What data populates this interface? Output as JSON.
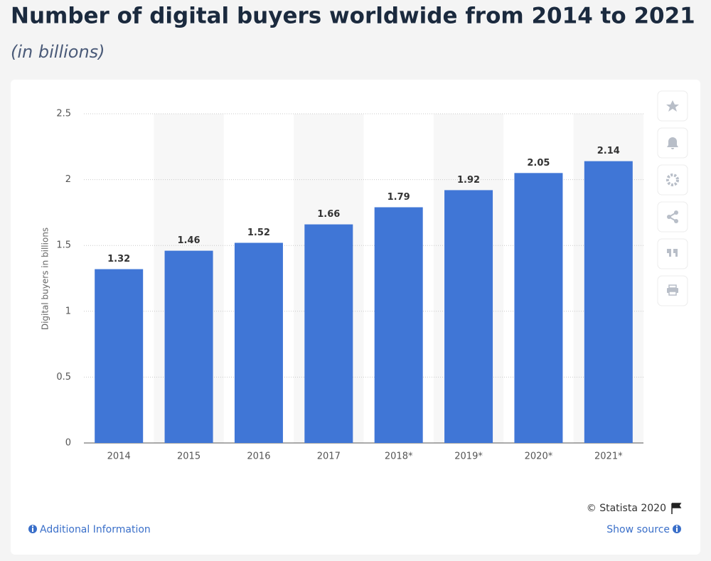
{
  "chart_data": {
    "type": "bar",
    "title": "Number of digital buyers worldwide from 2014 to 2021",
    "subtitle": "(in billions)",
    "y_label": "Digital buyers in billions",
    "categories": [
      "2014",
      "2015",
      "2016",
      "2017",
      "2018*",
      "2019*",
      "2020*",
      "2021*"
    ],
    "values": [
      1.32,
      1.46,
      1.52,
      1.66,
      1.79,
      1.92,
      2.05,
      2.14
    ],
    "color": "#4076d6",
    "ylim": [
      0,
      2.5
    ],
    "yticks": [
      0,
      0.5,
      1,
      1.5,
      2,
      2.5
    ],
    "grid": true
  },
  "footer": {
    "credit": "© Statista 2020",
    "additional_info": "Additional Information",
    "show_source": "Show source"
  }
}
